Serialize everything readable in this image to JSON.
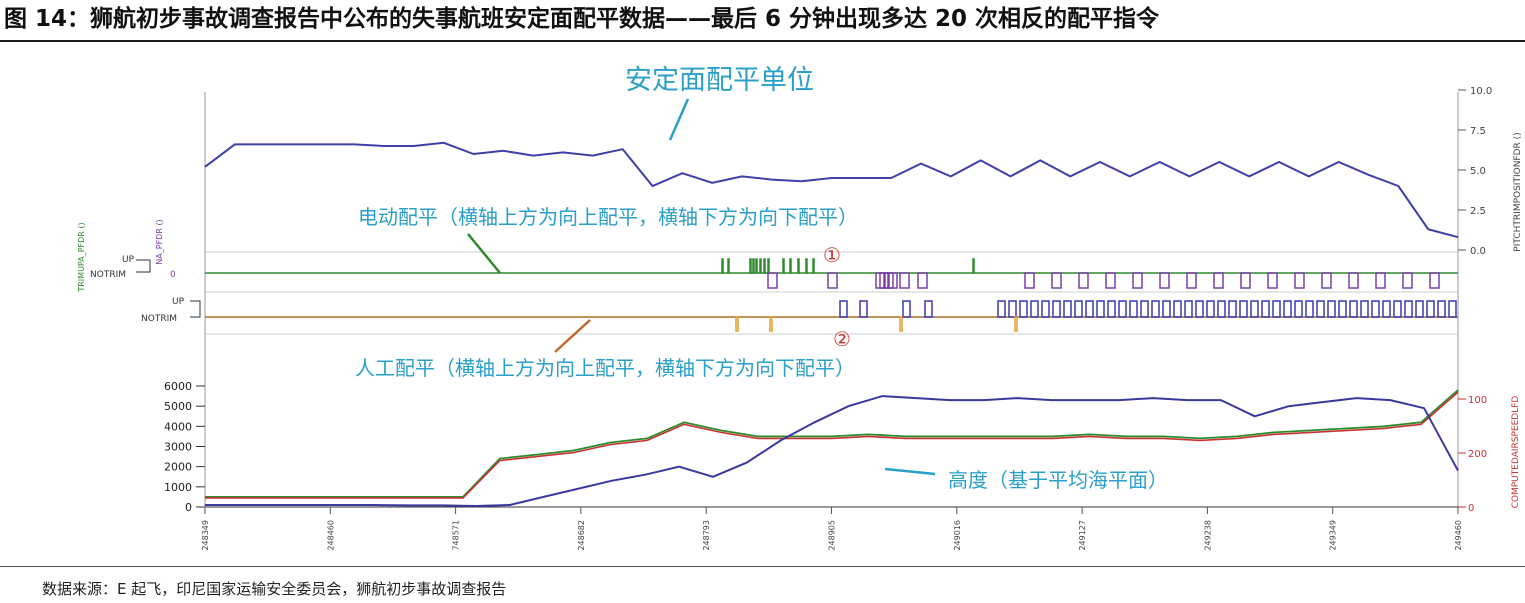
{
  "figure_title": "图 14：狮航初步事故调查报告中公布的失事航班安定面配平数据——最后 6 分钟出现多达 20 次相反的配平指令",
  "source": "数据来源：E 起飞，印尼国家运输安全委员会，狮航初步事故调查报告",
  "chart_data": [
    {
      "type": "line",
      "panel": "stabilizer",
      "annotation": "安定面配平单位",
      "y2label": "PITCHTRIMPOSITIONFDR ()",
      "ylim": [
        0,
        10
      ],
      "y_ticks": [
        "10.0",
        "7.5",
        "5.0",
        "2.5",
        "0.0"
      ],
      "series": [
        {
          "color": "#3f3fa8",
          "values": [
            5.2,
            6.6,
            6.6,
            6.6,
            6.6,
            6.6,
            6.5,
            6.5,
            6.7,
            6.0,
            6.2,
            5.9,
            6.1,
            5.9,
            6.3,
            4.0,
            4.8,
            4.2,
            4.6,
            4.4,
            4.3,
            4.5,
            4.5,
            4.5,
            5.4,
            4.6,
            5.6,
            4.6,
            5.6,
            4.6,
            5.5,
            4.6,
            5.5,
            4.6,
            5.5,
            4.6,
            5.5,
            4.6,
            5.5,
            4.7,
            4.0,
            1.3,
            0.8
          ]
        }
      ]
    },
    {
      "type": "line",
      "panel": "electric_trim",
      "annotation": "电动配平（横轴上方为向上配平，横轴下方为向下配平）",
      "marker": "①",
      "ylabel": "TRIMUPA_PFDR ()",
      "ylabel2": "NA_PFDR ()",
      "level_labels": [
        "UP",
        "NOTRIM",
        "0"
      ]
    },
    {
      "type": "line",
      "panel": "manual_trim",
      "annotation": "人工配平（横轴上方为向上配平，横轴下方为向下配平）",
      "marker": "②",
      "level_labels": [
        "UP",
        "NOTRIM"
      ]
    },
    {
      "type": "line",
      "panel": "altitude",
      "annotation": "高度（基于平均海平面）",
      "y2label": "COMPUTEDAIRSPEEDLFD",
      "ylim": [
        0,
        6000
      ],
      "y_ticks": [
        "6000",
        "5000",
        "4000",
        "3000",
        "2000",
        "1000",
        "0"
      ],
      "y2_ticks": [
        "100",
        "200",
        "0"
      ],
      "x_ticks": [
        "248349",
        "248460",
        "748571",
        "248682",
        "248793",
        "248905",
        "249016",
        "249127",
        "249238",
        "249349",
        "249460"
      ],
      "series": [
        {
          "color": "#3a3a9e",
          "values": [
            100,
            100,
            100,
            100,
            100,
            100,
            80,
            80,
            50,
            100,
            500,
            900,
            1300,
            1600,
            2000,
            1500,
            2200,
            3300,
            4200,
            5000,
            5500,
            5400,
            5300,
            5300,
            5400,
            5300,
            5300,
            5300,
            5400,
            5300,
            5300,
            4500,
            5000,
            5200,
            5400,
            5300,
            4900,
            1800
          ]
        },
        {
          "color": "#2e8b2e",
          "values": [
            500,
            500,
            500,
            500,
            500,
            500,
            500,
            500,
            2400,
            2600,
            2800,
            3200,
            3400,
            4200,
            3800,
            3500,
            3500,
            3500,
            3600,
            3500,
            3500,
            3500,
            3500,
            3500,
            3600,
            3500,
            3500,
            3400,
            3500,
            3700,
            3800,
            3900,
            4000,
            4200,
            5800
          ]
        },
        {
          "color": "#c83232",
          "values": [
            450,
            450,
            450,
            450,
            450,
            450,
            450,
            450,
            2300,
            2500,
            2700,
            3100,
            3300,
            4100,
            3700,
            3400,
            3400,
            3400,
            3500,
            3400,
            3400,
            3400,
            3400,
            3400,
            3500,
            3400,
            3400,
            3300,
            3400,
            3600,
            3700,
            3800,
            3900,
            4100,
            5700
          ]
        }
      ]
    }
  ]
}
